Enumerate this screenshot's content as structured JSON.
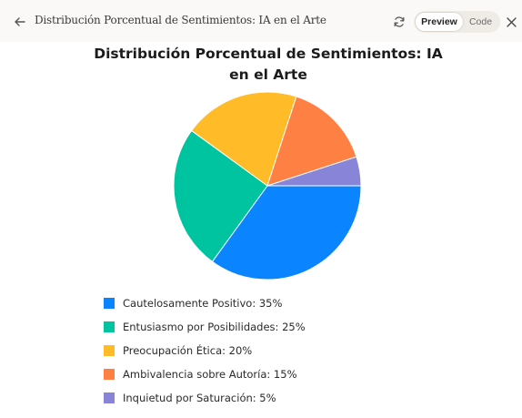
{
  "header": {
    "title": "Distribución Porcentual de Sentimientos: IA en el Arte",
    "preview_label": "Preview",
    "code_label": "Code"
  },
  "icons": {
    "back": "arrow-left-icon",
    "refresh": "refresh-icon",
    "close": "close-icon"
  },
  "chart_data": {
    "type": "pie",
    "title": "Distribución Porcentual de Sentimientos: IA en el Arte",
    "slices": [
      {
        "label": "Cautelosamente Positivo",
        "value": 35,
        "color": "#0a84ff",
        "legend": "Cautelosamente Positivo: 35%"
      },
      {
        "label": "Entusiasmo por Posibilidades",
        "value": 25,
        "color": "#00c49f",
        "legend": "Entusiasmo por Posibilidades: 25%"
      },
      {
        "label": "Preocupación Ética",
        "value": 20,
        "color": "#ffbb28",
        "legend": "Preocupación Ética: 20%"
      },
      {
        "label": "Ambivalencia sobre Autoría",
        "value": 15,
        "color": "#ff8042",
        "legend": "Ambivalencia sobre Autoría: 15%"
      },
      {
        "label": "Inquietud por Saturación",
        "value": 5,
        "color": "#8884d8",
        "legend": "Inquietud por Saturación: 5%"
      }
    ],
    "legend_position": "bottom-left"
  }
}
